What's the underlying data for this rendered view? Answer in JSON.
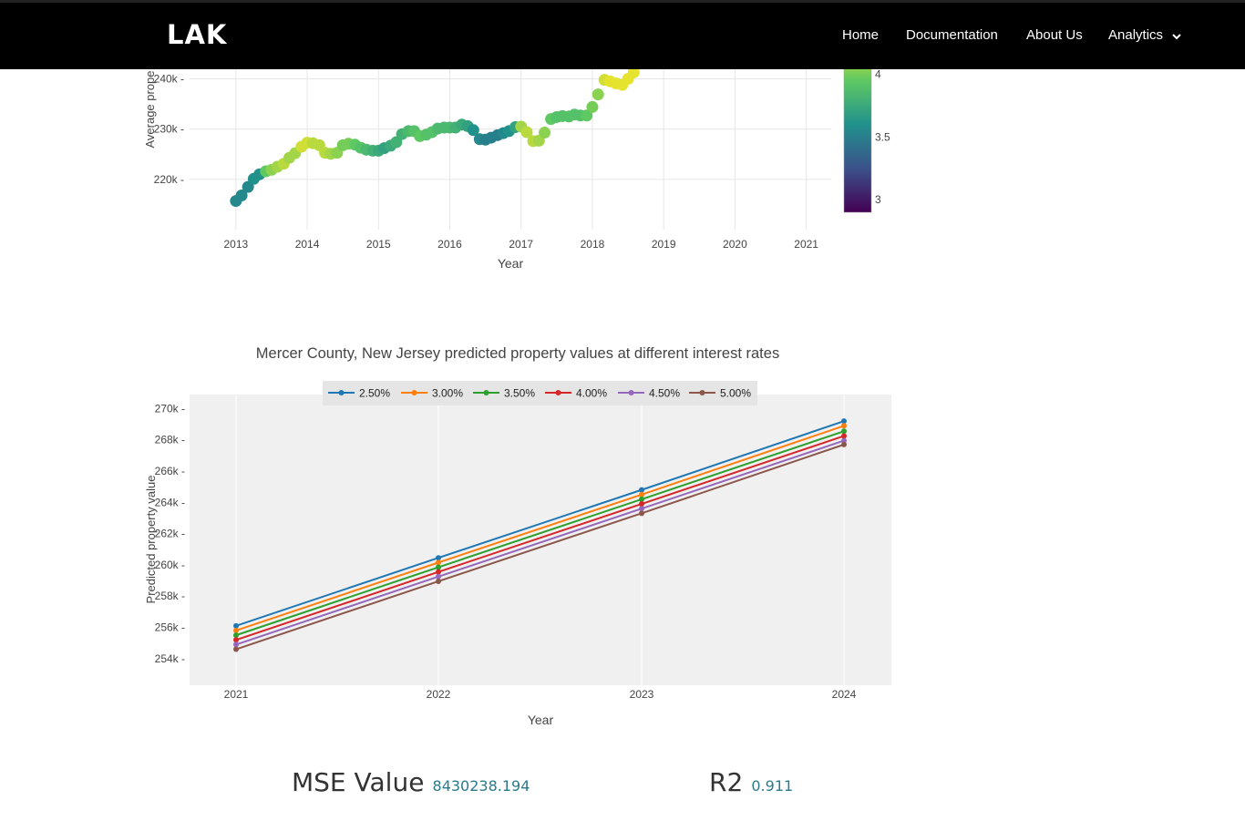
{
  "navbar": {
    "brand": "LAK",
    "items": [
      {
        "label": "Home"
      },
      {
        "label": "Documentation"
      },
      {
        "label": "About Us"
      },
      {
        "label": "Analytics"
      }
    ]
  },
  "chart_data": [
    {
      "type": "scatter",
      "title": "",
      "xlabel": "Year",
      "ylabel": "Average prope",
      "x_ticks": [
        "2013",
        "2014",
        "2015",
        "2016",
        "2017",
        "2018",
        "2019",
        "2020",
        "2021"
      ],
      "y_ticks": [
        "220k",
        "230k",
        "240k"
      ],
      "xlim": [
        2012.35,
        2021.35
      ],
      "ylim": [
        210000,
        243000
      ],
      "colorbar": {
        "ticks": [
          "3",
          "3.5",
          "4"
        ],
        "colorscale": "viridis",
        "range": [
          2.9,
          4.3
        ]
      },
      "points": [
        {
          "x": 2013.0,
          "y": 215700,
          "c": 3.55
        },
        {
          "x": 2013.08,
          "y": 216800,
          "c": 3.55
        },
        {
          "x": 2013.17,
          "y": 218500,
          "c": 3.55
        },
        {
          "x": 2013.25,
          "y": 220100,
          "c": 3.6
        },
        {
          "x": 2013.33,
          "y": 221000,
          "c": 3.6
        },
        {
          "x": 2013.42,
          "y": 221600,
          "c": 3.95
        },
        {
          "x": 2013.5,
          "y": 221900,
          "c": 4.05
        },
        {
          "x": 2013.58,
          "y": 222500,
          "c": 4.1
        },
        {
          "x": 2013.67,
          "y": 223100,
          "c": 4.15
        },
        {
          "x": 2013.75,
          "y": 224300,
          "c": 4.1
        },
        {
          "x": 2013.83,
          "y": 225200,
          "c": 4.1
        },
        {
          "x": 2013.92,
          "y": 226500,
          "c": 4.2
        },
        {
          "x": 2014.0,
          "y": 227300,
          "c": 4.2
        },
        {
          "x": 2014.08,
          "y": 227200,
          "c": 4.15
        },
        {
          "x": 2014.17,
          "y": 226800,
          "c": 4.15
        },
        {
          "x": 2014.25,
          "y": 225300,
          "c": 4.15
        },
        {
          "x": 2014.33,
          "y": 225100,
          "c": 4.1
        },
        {
          "x": 2014.42,
          "y": 225300,
          "c": 4.05
        },
        {
          "x": 2014.5,
          "y": 226800,
          "c": 4.0
        },
        {
          "x": 2014.58,
          "y": 227100,
          "c": 4.0
        },
        {
          "x": 2014.67,
          "y": 226900,
          "c": 3.95
        },
        {
          "x": 2014.75,
          "y": 226300,
          "c": 3.9
        },
        {
          "x": 2014.83,
          "y": 225900,
          "c": 3.85
        },
        {
          "x": 2014.92,
          "y": 225700,
          "c": 3.8
        },
        {
          "x": 2015.0,
          "y": 225700,
          "c": 3.75
        },
        {
          "x": 2015.08,
          "y": 226200,
          "c": 3.7
        },
        {
          "x": 2015.17,
          "y": 226700,
          "c": 3.75
        },
        {
          "x": 2015.25,
          "y": 227400,
          "c": 3.8
        },
        {
          "x": 2015.33,
          "y": 229000,
          "c": 3.8
        },
        {
          "x": 2015.42,
          "y": 229600,
          "c": 3.85
        },
        {
          "x": 2015.5,
          "y": 229600,
          "c": 3.9
        },
        {
          "x": 2015.58,
          "y": 228600,
          "c": 3.95
        },
        {
          "x": 2015.67,
          "y": 228900,
          "c": 3.9
        },
        {
          "x": 2015.75,
          "y": 229400,
          "c": 3.9
        },
        {
          "x": 2015.83,
          "y": 230100,
          "c": 3.85
        },
        {
          "x": 2015.92,
          "y": 230300,
          "c": 3.85
        },
        {
          "x": 2016.0,
          "y": 230300,
          "c": 3.85
        },
        {
          "x": 2016.08,
          "y": 230300,
          "c": 3.8
        },
        {
          "x": 2016.17,
          "y": 230900,
          "c": 3.75
        },
        {
          "x": 2016.25,
          "y": 230600,
          "c": 3.7
        },
        {
          "x": 2016.33,
          "y": 229800,
          "c": 3.6
        },
        {
          "x": 2016.42,
          "y": 228000,
          "c": 3.55
        },
        {
          "x": 2016.5,
          "y": 227900,
          "c": 3.5
        },
        {
          "x": 2016.58,
          "y": 228300,
          "c": 3.5
        },
        {
          "x": 2016.67,
          "y": 228800,
          "c": 3.5
        },
        {
          "x": 2016.75,
          "y": 229200,
          "c": 3.55
        },
        {
          "x": 2016.83,
          "y": 229600,
          "c": 3.6
        },
        {
          "x": 2016.92,
          "y": 230400,
          "c": 3.7
        },
        {
          "x": 2017.0,
          "y": 230500,
          "c": 4.1
        },
        {
          "x": 2017.08,
          "y": 229400,
          "c": 4.15
        },
        {
          "x": 2017.17,
          "y": 227600,
          "c": 4.15
        },
        {
          "x": 2017.25,
          "y": 227700,
          "c": 4.1
        },
        {
          "x": 2017.33,
          "y": 229300,
          "c": 4.05
        },
        {
          "x": 2017.42,
          "y": 232000,
          "c": 3.95
        },
        {
          "x": 2017.5,
          "y": 232400,
          "c": 3.9
        },
        {
          "x": 2017.58,
          "y": 232600,
          "c": 3.9
        },
        {
          "x": 2017.67,
          "y": 232500,
          "c": 3.9
        },
        {
          "x": 2017.75,
          "y": 232900,
          "c": 3.9
        },
        {
          "x": 2017.83,
          "y": 232700,
          "c": 3.9
        },
        {
          "x": 2017.92,
          "y": 232700,
          "c": 3.95
        },
        {
          "x": 2018.0,
          "y": 234400,
          "c": 4.0
        },
        {
          "x": 2018.08,
          "y": 236900,
          "c": 4.05
        },
        {
          "x": 2018.17,
          "y": 239800,
          "c": 4.2
        },
        {
          "x": 2018.25,
          "y": 239500,
          "c": 4.25
        },
        {
          "x": 2018.33,
          "y": 239100,
          "c": 4.25
        },
        {
          "x": 2018.42,
          "y": 238800,
          "c": 4.25
        },
        {
          "x": 2018.5,
          "y": 240000,
          "c": 4.25
        },
        {
          "x": 2018.58,
          "y": 241300,
          "c": 4.25
        }
      ]
    },
    {
      "type": "line",
      "title": "Mercer County, New Jersey predicted property values at different interest rates",
      "xlabel": "Year",
      "ylabel": "Predicted property value",
      "x": [
        "2021",
        "2022",
        "2023",
        "2024"
      ],
      "x_ticks": [
        "2021",
        "2022",
        "2023",
        "2024"
      ],
      "y_ticks": [
        "254k",
        "256k",
        "258k",
        "260k",
        "262k",
        "264k",
        "266k",
        "268k",
        "270k"
      ],
      "ylim": [
        252300,
        270900
      ],
      "legend_position": "top",
      "series": [
        {
          "name": "2.50%",
          "color": "#1f77b4",
          "values": [
            256100,
            260450,
            264800,
            269200
          ]
        },
        {
          "name": "3.00%",
          "color": "#ff7f0e",
          "values": [
            255800,
            260150,
            264500,
            268900
          ]
        },
        {
          "name": "3.50%",
          "color": "#2ca02c",
          "values": [
            255500,
            259850,
            264200,
            268550
          ]
        },
        {
          "name": "4.00%",
          "color": "#d62728",
          "values": [
            255200,
            259550,
            263900,
            268250
          ]
        },
        {
          "name": "4.50%",
          "color": "#9467bd",
          "values": [
            254900,
            259250,
            263600,
            267950
          ]
        },
        {
          "name": "5.00%",
          "color": "#8c564b",
          "values": [
            254600,
            258950,
            263300,
            267700
          ]
        }
      ]
    }
  ],
  "metrics": {
    "mse_label": "MSE Value",
    "mse_value": "8430238.194",
    "r2_label": "R2",
    "r2_value": "0.911"
  }
}
